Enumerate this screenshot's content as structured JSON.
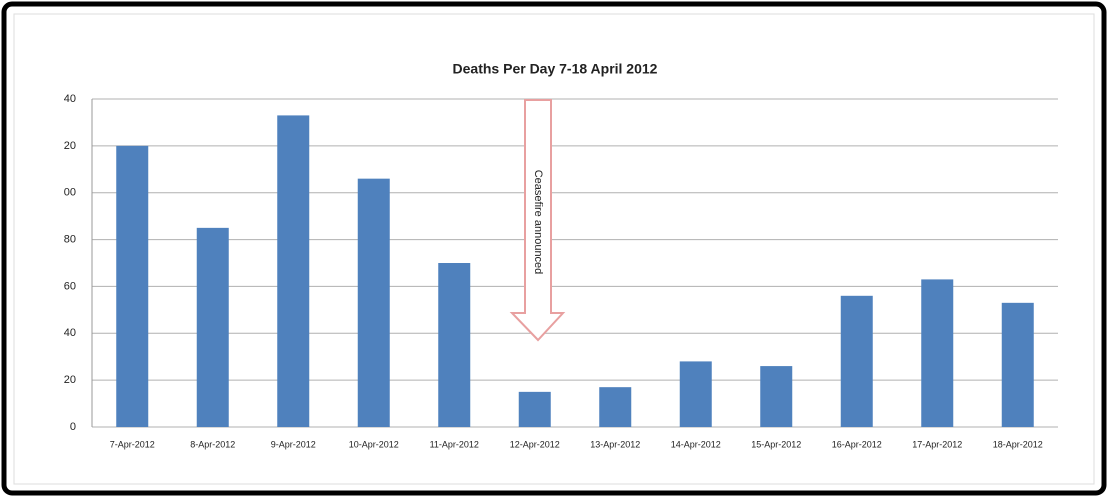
{
  "chart_data": {
    "type": "bar",
    "title": "Deaths Per Day 7-18  April 2012",
    "categories": [
      "7-Apr-2012",
      "8-Apr-2012",
      "9-Apr-2012",
      "10-Apr-2012",
      "11-Apr-2012",
      "12-Apr-2012",
      "13-Apr-2012",
      "14-Apr-2012",
      "15-Apr-2012",
      "16-Apr-2012",
      "17-Apr-2012",
      "18-Apr-2012"
    ],
    "values": [
      120,
      85,
      133,
      106,
      70,
      15,
      17,
      28,
      26,
      56,
      63,
      53
    ],
    "color": "#4f81bd",
    "ylim": [
      0,
      140
    ],
    "yticks": [
      0,
      20,
      40,
      60,
      80,
      {
        "value": 100,
        "label": "00"
      },
      {
        "value": 120,
        "label": "20"
      },
      {
        "value": 140,
        "label": "40"
      }
    ],
    "grid": true,
    "annotation": "Ceasefire announced"
  }
}
